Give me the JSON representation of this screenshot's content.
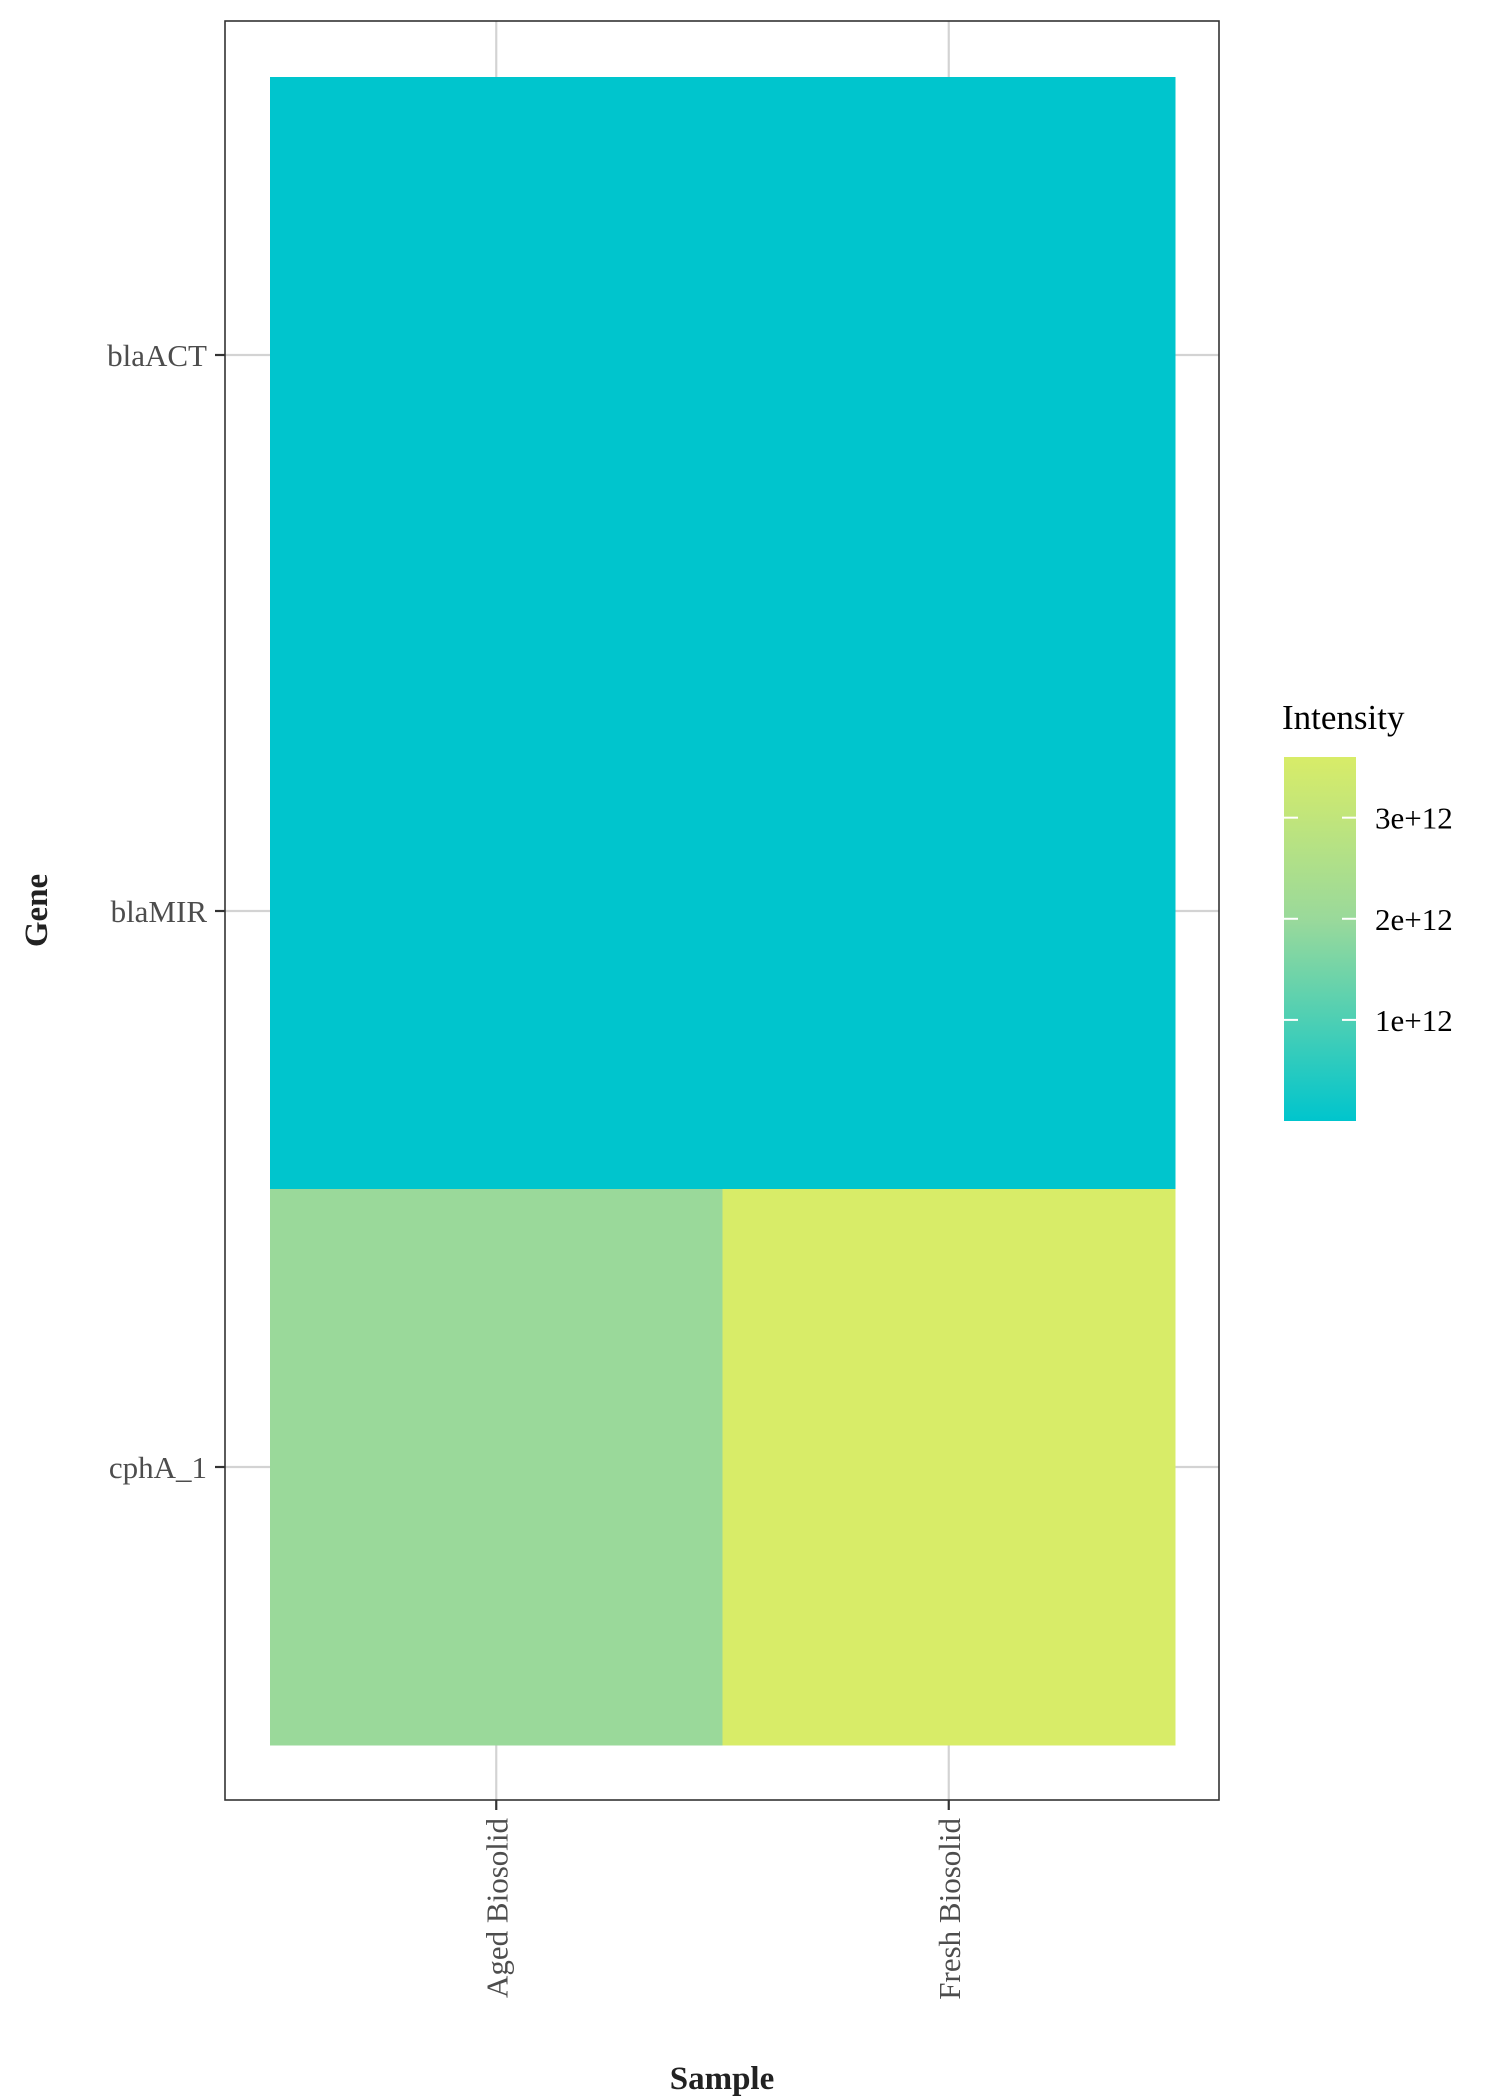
{
  "chart_data": {
    "type": "heatmap",
    "xlabel": "Sample",
    "ylabel": "Gene",
    "x_categories": [
      "Aged Biosolid",
      "Fresh Biosolid"
    ],
    "y_categories": [
      "blaACT",
      "blaMIR",
      "cphA_1"
    ],
    "cells": [
      {
        "x": "Aged Biosolid",
        "y": "blaACT",
        "value": 0
      },
      {
        "x": "Fresh Biosolid",
        "y": "blaACT",
        "value": 0
      },
      {
        "x": "Aged Biosolid",
        "y": "blaMIR",
        "value": 0
      },
      {
        "x": "Fresh Biosolid",
        "y": "blaMIR",
        "value": 0
      },
      {
        "x": "Aged Biosolid",
        "y": "cphA_1",
        "value": 2000000000000
      },
      {
        "x": "Fresh Biosolid",
        "y": "cphA_1",
        "value": 3600000000000
      }
    ],
    "legend": {
      "title": "Intensity",
      "range": [
        0,
        3600000000000
      ],
      "ticks": [
        {
          "value": 1000000000000,
          "label": "1e+12"
        },
        {
          "value": 2000000000000,
          "label": "2e+12"
        },
        {
          "value": 3000000000000,
          "label": "3e+12"
        }
      ],
      "color_low": "#00c5cd",
      "color_high": "#d8ec68",
      "position": "right"
    },
    "grid": true,
    "theme_colors": {
      "grid": "#d3d3d3",
      "panel_border": "#333333"
    }
  }
}
